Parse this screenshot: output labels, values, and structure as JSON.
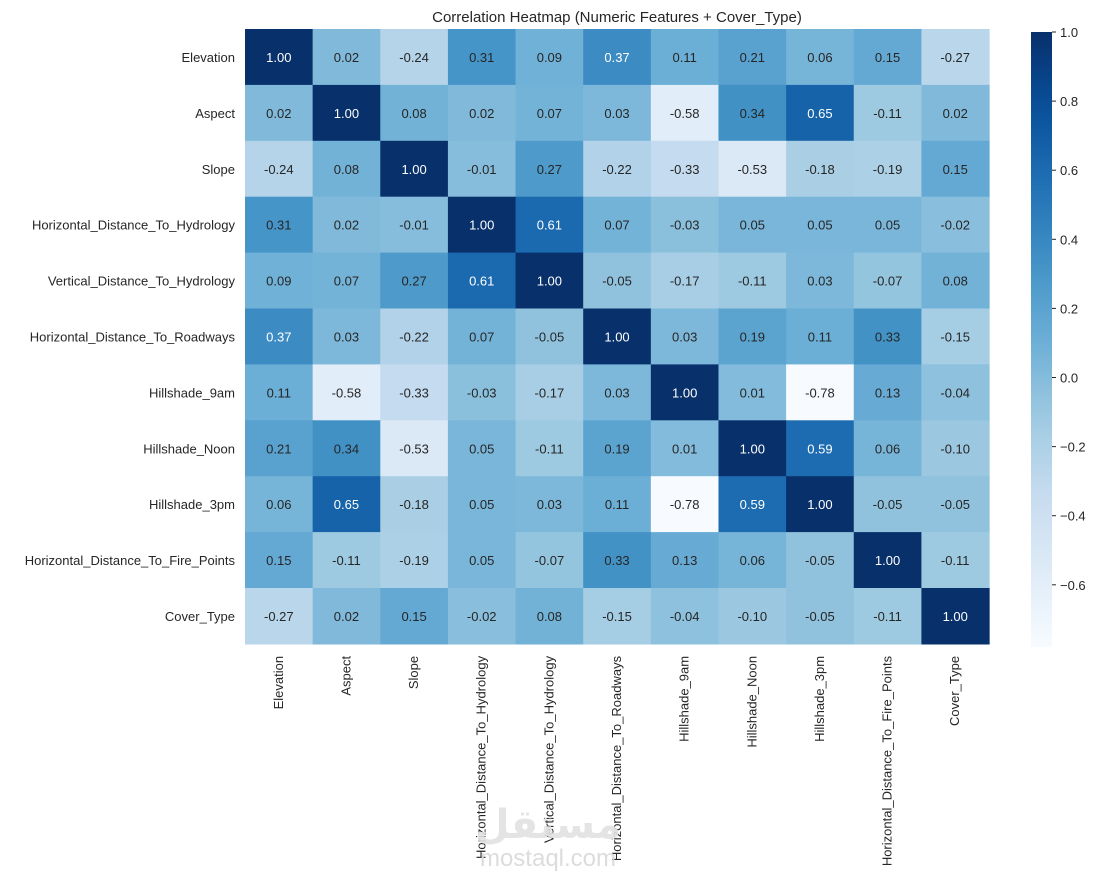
{
  "chart_data": {
    "type": "heatmap",
    "title": "Correlation Heatmap (Numeric Features + Cover_Type)",
    "labels": [
      "Elevation",
      "Aspect",
      "Slope",
      "Horizontal_Distance_To_Hydrology",
      "Vertical_Distance_To_Hydrology",
      "Horizontal_Distance_To_Roadways",
      "Hillshade_9am",
      "Hillshade_Noon",
      "Hillshade_3pm",
      "Horizontal_Distance_To_Fire_Points",
      "Cover_Type"
    ],
    "matrix": [
      [
        1.0,
        0.02,
        -0.24,
        0.31,
        0.09,
        0.37,
        0.11,
        0.21,
        0.06,
        0.15,
        -0.27
      ],
      [
        0.02,
        1.0,
        0.08,
        0.02,
        0.07,
        0.03,
        -0.58,
        0.34,
        0.65,
        -0.11,
        0.02
      ],
      [
        -0.24,
        0.08,
        1.0,
        -0.01,
        0.27,
        -0.22,
        -0.33,
        -0.53,
        -0.18,
        -0.19,
        0.15
      ],
      [
        0.31,
        0.02,
        -0.01,
        1.0,
        0.61,
        0.07,
        -0.03,
        0.05,
        0.05,
        0.05,
        -0.02
      ],
      [
        0.09,
        0.07,
        0.27,
        0.61,
        1.0,
        -0.05,
        -0.17,
        -0.11,
        0.03,
        -0.07,
        0.08
      ],
      [
        0.37,
        0.03,
        -0.22,
        0.07,
        -0.05,
        1.0,
        0.03,
        0.19,
        0.11,
        0.33,
        -0.15
      ],
      [
        0.11,
        -0.58,
        -0.33,
        -0.03,
        -0.17,
        0.03,
        1.0,
        0.01,
        -0.78,
        0.13,
        -0.04
      ],
      [
        0.21,
        0.34,
        -0.53,
        0.05,
        -0.11,
        0.19,
        0.01,
        1.0,
        0.59,
        0.06,
        -0.1
      ],
      [
        0.06,
        0.65,
        -0.18,
        0.05,
        0.03,
        0.11,
        -0.78,
        0.59,
        1.0,
        -0.05,
        -0.05
      ],
      [
        0.15,
        -0.11,
        -0.19,
        0.05,
        -0.07,
        0.33,
        0.13,
        0.06,
        -0.05,
        1.0,
        -0.11
      ],
      [
        -0.27,
        0.02,
        0.15,
        -0.02,
        0.08,
        -0.15,
        -0.04,
        -0.1,
        -0.05,
        -0.11,
        1.0
      ]
    ],
    "colormap": "Blues",
    "vmin": -0.78,
    "vmax": 1.0,
    "colorbar_ticks": [
      1.0,
      0.8,
      0.6,
      0.4,
      0.2,
      0.0,
      -0.2,
      -0.4,
      -0.6
    ],
    "colorbar_tick_labels": [
      "1.0",
      "0.8",
      "0.6",
      "0.4",
      "0.2",
      "0.0",
      "−0.2",
      "−0.4",
      "−0.6"
    ],
    "annotation_format": "0.00"
  },
  "watermark": {
    "logo_text": "مستقل",
    "domain_text": "mostaql.com"
  }
}
